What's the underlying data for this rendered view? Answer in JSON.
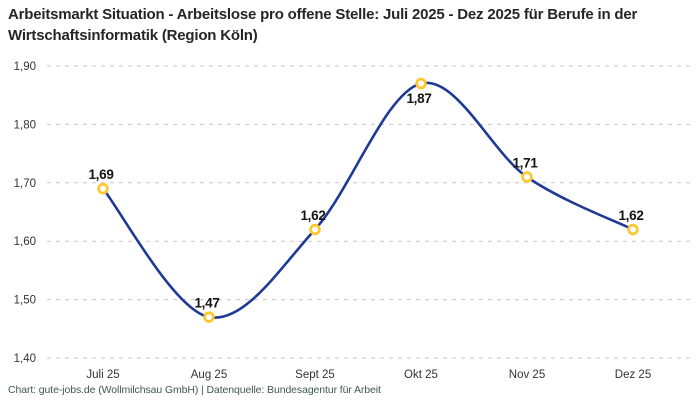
{
  "title": "Arbeitsmarkt Situation - Arbeitslose pro offene Stelle: Juli 2025 - Dez 2025 für Berufe in der Wirtschaftsinformatik (Region Köln)",
  "footer": "Chart: gute-jobs.de (Wollmilchsau GmbH) | Datenquelle: Bundesagentur für Arbeit",
  "chart_data": {
    "type": "line",
    "title": "Arbeitsmarkt Situation - Arbeitslose pro offene Stelle: Juli 2025 - Dez 2025 für Berufe in der Wirtschaftsinformatik (Region Köln)",
    "categories": [
      "Juli 25",
      "Aug 25",
      "Sept 25",
      "Okt 25",
      "Nov 25",
      "Dez 25"
    ],
    "values": [
      1.69,
      1.47,
      1.62,
      1.87,
      1.71,
      1.62
    ],
    "value_labels": [
      "1,69",
      "1,47",
      "1,62",
      "1,87",
      "1,71",
      "1,62"
    ],
    "label_positions": [
      "above",
      "above",
      "above",
      "below",
      "above",
      "above"
    ],
    "ylim": [
      1.4,
      1.9
    ],
    "y_ticks": [
      1.9,
      1.8,
      1.7,
      1.6,
      1.5,
      1.4
    ],
    "y_tick_labels": [
      "1,90",
      "1,80",
      "1,70",
      "1,60",
      "1,50",
      "1,40"
    ],
    "xlabel": "",
    "ylabel": "",
    "grid": "horizontal-dashed",
    "legend": "none",
    "smooth": true,
    "colors": {
      "line": "#1e3a96",
      "marker_ring": "#ffc72e",
      "marker_fill": "#ffffff",
      "gridline": "#c7c7c7",
      "axis_text": "#333333",
      "data_label": "#141414",
      "title_text": "#262626",
      "footer_text": "#3e5a49",
      "background": "#ffffff"
    }
  }
}
